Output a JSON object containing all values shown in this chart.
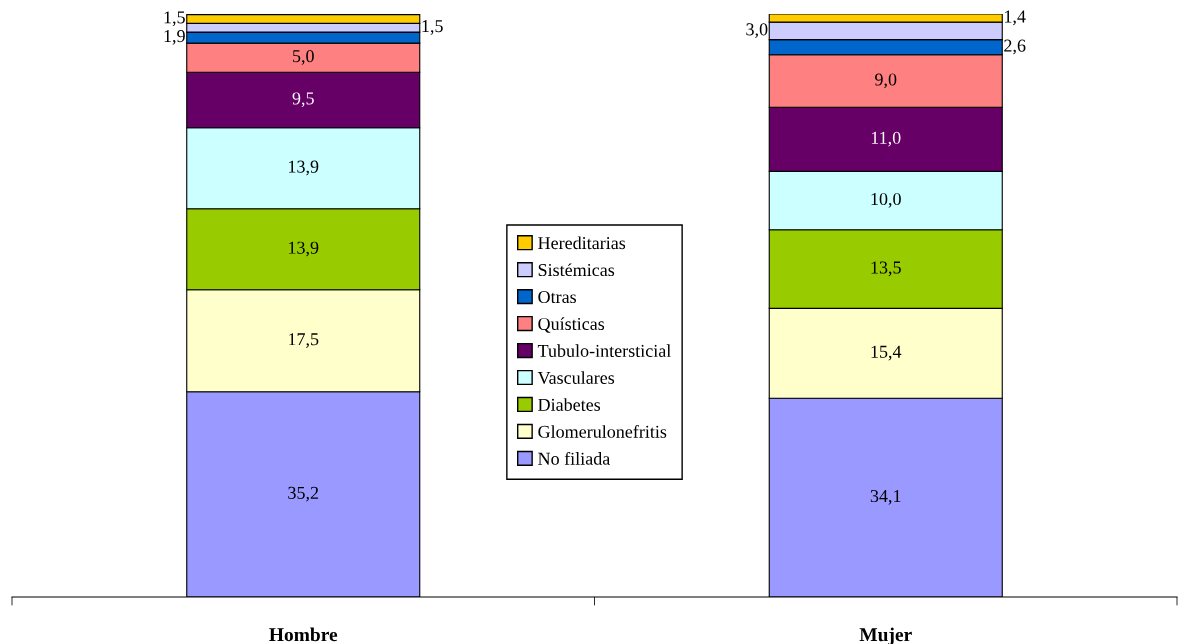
{
  "chart_data": {
    "type": "bar",
    "stacked": true,
    "categories": [
      "Hombre",
      "Mujer"
    ],
    "legend": "center",
    "grid": false,
    "series": [
      {
        "name": "No filiada",
        "color": "#9999ff",
        "values": [
          35.2,
          34.1
        ],
        "value_labels": [
          "35,2",
          "34,1"
        ]
      },
      {
        "name": "Glomerulonefritis",
        "color": "#ffffcc",
        "values": [
          17.5,
          15.4
        ],
        "value_labels": [
          "17,5",
          "15,4"
        ]
      },
      {
        "name": "Diabetes",
        "color": "#99cc00",
        "values": [
          13.9,
          13.5
        ],
        "value_labels": [
          "13,9",
          "13,5"
        ]
      },
      {
        "name": "Vasculares",
        "color": "#ccffff",
        "values": [
          13.9,
          10.0
        ],
        "value_labels": [
          "13,9",
          "10,0"
        ]
      },
      {
        "name": "Tubulo-intersticial",
        "color": "#660066",
        "values": [
          9.5,
          11.0
        ],
        "value_labels": [
          "9,5",
          "11,0"
        ]
      },
      {
        "name": "Quísticas",
        "color": "#ff8080",
        "values": [
          5.0,
          9.0
        ],
        "value_labels": [
          "5,0",
          "9,0"
        ]
      },
      {
        "name": "Otras",
        "color": "#0066cc",
        "values": [
          1.9,
          2.6
        ],
        "value_labels": [
          "1,9",
          "2,6"
        ]
      },
      {
        "name": "Sistémicas",
        "color": "#ccccff",
        "values": [
          1.5,
          3.0
        ],
        "value_labels": [
          "1,5",
          "3,0"
        ]
      },
      {
        "name": "Hereditarias",
        "color": "#ffcc00",
        "values": [
          1.5,
          1.4
        ],
        "value_labels": [
          "1,5",
          "1,4"
        ]
      }
    ]
  }
}
